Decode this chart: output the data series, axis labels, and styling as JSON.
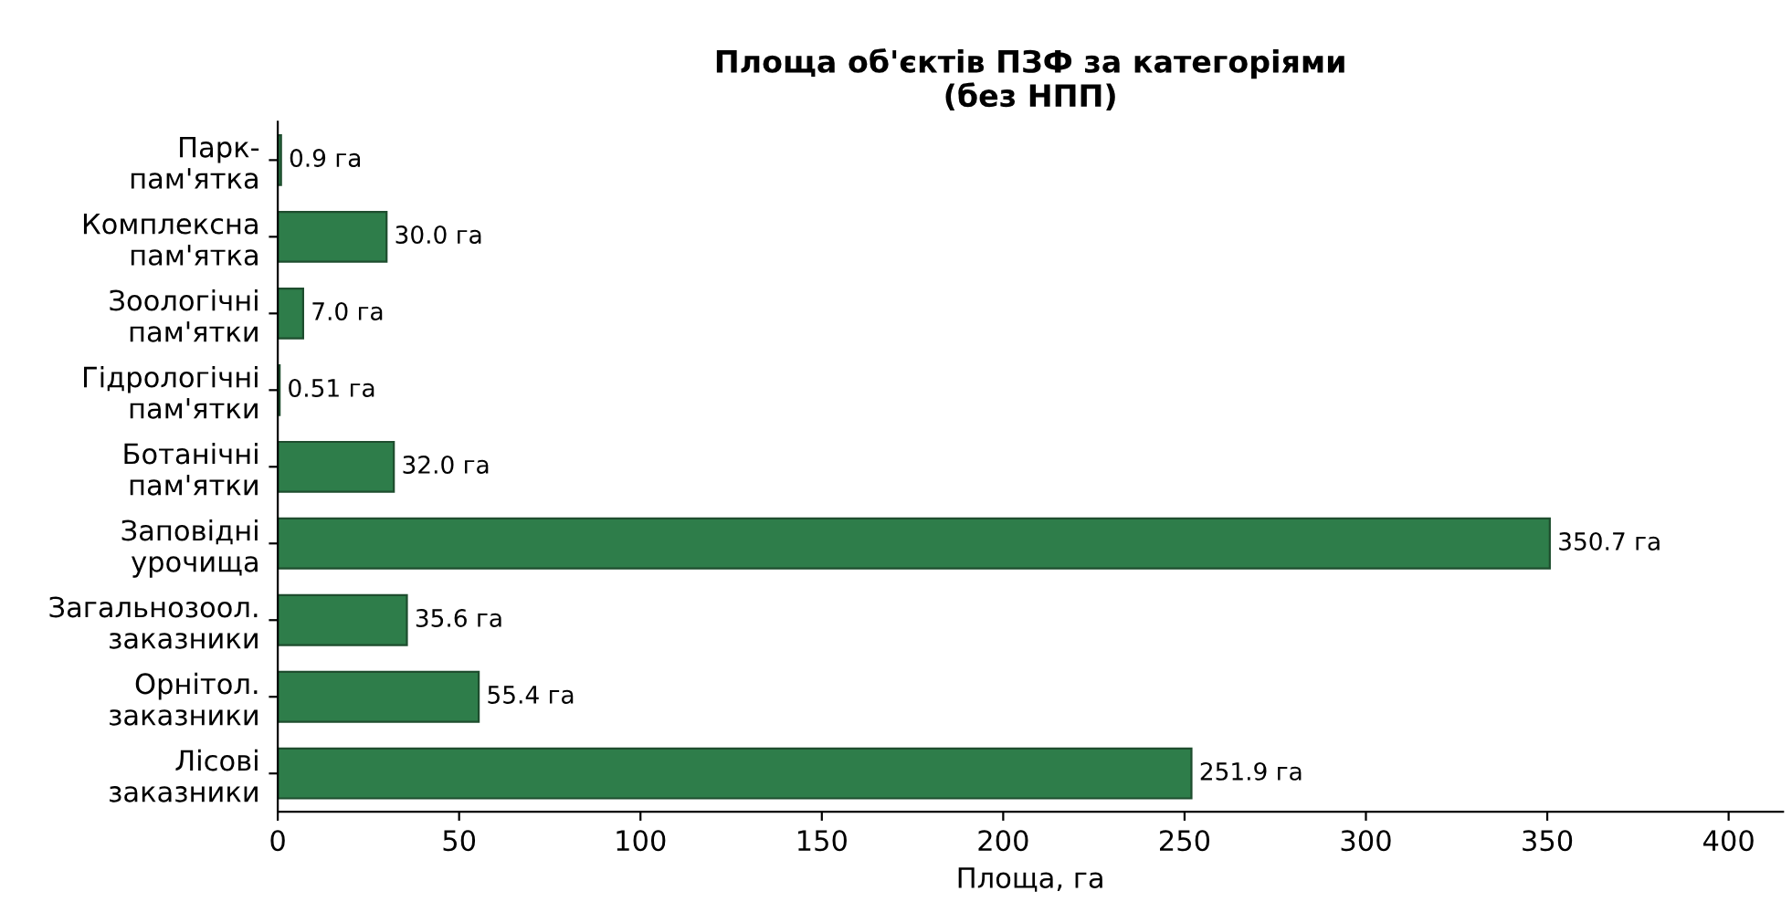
{
  "chart_data": {
    "type": "bar",
    "orientation": "horizontal",
    "title": "Площа об'єктів ПЗФ за категоріями\n(без НПП)",
    "xlabel": "Площа, га",
    "categories": [
      "Парк-\nпам'ятка",
      "Комплексна\nпам'ятка",
      "Зоологічні\nпам'ятки",
      "Гідрологічні\nпам'ятки",
      "Ботанічні\nпам'ятки",
      "Заповідні\nурочища",
      "Загальнозоол.\nзаказники",
      "Орнітол.\nзаказники",
      "Лісові\nзаказники"
    ],
    "values": [
      0.9,
      30.0,
      7.0,
      0.51,
      32.0,
      350.7,
      35.6,
      55.4,
      251.9
    ],
    "value_labels": [
      "0.9 га",
      "30.0 га",
      "7.0 га",
      "0.51 га",
      "32.0 га",
      "350.7 га",
      "35.6 га",
      "55.4 га",
      "251.9 га"
    ],
    "color": "#2e7d4a",
    "xlim": [
      0,
      415
    ],
    "xticks": [
      0,
      50,
      100,
      150,
      200,
      250,
      300,
      350,
      400
    ],
    "grid": false
  }
}
